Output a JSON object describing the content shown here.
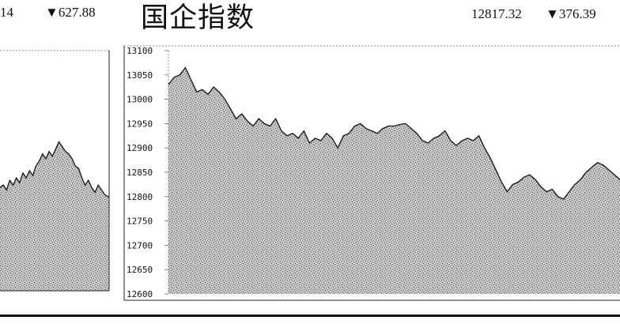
{
  "left_panel": {
    "value_text": "14",
    "change_text": "▼627.88"
  },
  "right_panel": {
    "title": "国企指数",
    "value_text": "12817.32",
    "change_text": "▼376.39"
  },
  "colors": {
    "ink": "#111111",
    "fill_texture": "#9a9a9a",
    "background": "#ffffff"
  },
  "chart_data": [
    {
      "type": "area",
      "title": "",
      "xlabel": "",
      "ylabel": "",
      "partial": true,
      "ylim": [
        0,
        1
      ],
      "x": [
        0,
        0.03,
        0.06,
        0.09,
        0.12,
        0.15,
        0.18,
        0.21,
        0.24,
        0.27,
        0.3,
        0.33,
        0.36,
        0.39,
        0.42,
        0.45,
        0.48,
        0.51,
        0.54,
        0.57,
        0.6,
        0.63,
        0.66,
        0.69,
        0.72,
        0.75,
        0.78,
        0.81,
        0.84,
        0.87,
        0.9,
        0.93,
        0.96,
        1.0
      ],
      "values": [
        0.43,
        0.44,
        0.42,
        0.46,
        0.44,
        0.47,
        0.45,
        0.49,
        0.47,
        0.5,
        0.48,
        0.52,
        0.54,
        0.57,
        0.55,
        0.58,
        0.56,
        0.59,
        0.62,
        0.6,
        0.58,
        0.57,
        0.55,
        0.52,
        0.51,
        0.47,
        0.44,
        0.46,
        0.43,
        0.41,
        0.44,
        0.42,
        0.4,
        0.39
      ]
    },
    {
      "type": "area",
      "title": "国企指数",
      "xlabel": "",
      "ylabel": "",
      "ylim": [
        12600,
        13100
      ],
      "yticks": [
        13100,
        13050,
        13000,
        12950,
        12900,
        12850,
        12800,
        12750,
        12700,
        12650,
        12600
      ],
      "x": [
        0,
        1,
        2,
        3,
        4,
        5,
        6,
        7,
        8,
        9,
        10,
        11,
        12,
        13,
        14,
        15,
        16,
        17,
        18,
        19,
        20,
        21,
        22,
        23,
        24,
        25,
        26,
        27,
        28,
        29,
        30,
        31,
        32,
        33,
        34,
        35,
        36,
        37,
        38,
        39,
        40,
        41,
        42,
        43,
        44,
        45,
        46,
        47,
        48,
        49,
        50,
        51,
        52,
        53,
        54,
        55,
        56,
        57,
        58,
        59,
        60,
        61,
        62,
        63,
        64,
        65,
        66,
        67,
        68,
        69,
        70,
        71,
        72,
        73,
        74,
        75,
        76,
        77,
        78,
        79,
        80
      ],
      "values": [
        13030,
        13045,
        13050,
        13065,
        13040,
        13015,
        13020,
        13010,
        13025,
        13015,
        13000,
        12980,
        12960,
        12970,
        12955,
        12945,
        12960,
        12950,
        12945,
        12960,
        12935,
        12925,
        12930,
        12920,
        12935,
        12910,
        12920,
        12915,
        12930,
        12920,
        12900,
        12925,
        12930,
        12945,
        12950,
        12940,
        12935,
        12930,
        12940,
        12945,
        12945,
        12948,
        12950,
        12940,
        12930,
        12915,
        12910,
        12920,
        12925,
        12935,
        12915,
        12905,
        12915,
        12920,
        12915,
        12925,
        12900,
        12880,
        12855,
        12830,
        12810,
        12825,
        12830,
        12840,
        12845,
        12835,
        12820,
        12810,
        12815,
        12800,
        12795,
        12810,
        12825,
        12835,
        12850,
        12860,
        12870,
        12865,
        12855,
        12845,
        12835
      ]
    }
  ]
}
